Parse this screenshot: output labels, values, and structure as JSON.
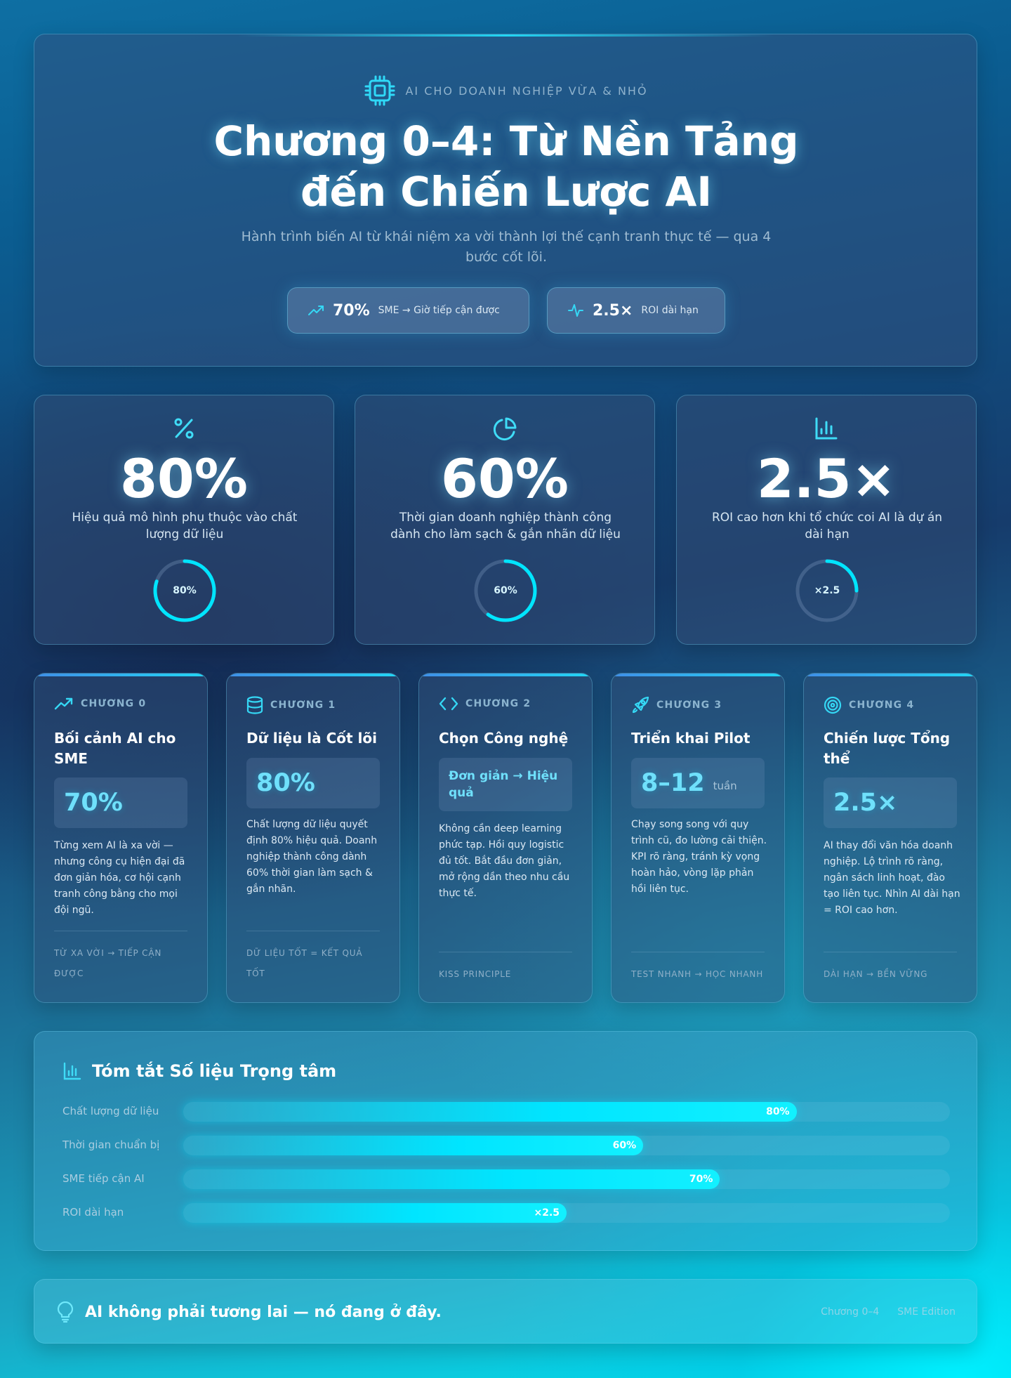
{
  "hero": {
    "eyebrow": "AI CHO DOANH NGHIỆP VỪA & NHỎ",
    "title_line1": "Chương 0–4: Từ Nền Tảng",
    "title_line2": "đến Chiến Lược AI",
    "subtitle": "Hành trình biến AI từ khái niệm xa vời thành lợi thế cạnh tranh thực tế — qua 4 bước cốt lõi.",
    "pills": [
      {
        "icon": "trending-up-icon",
        "value": "70%",
        "label": "SME → Giờ tiếp cận được"
      },
      {
        "icon": "pulse-icon",
        "value": "2.5×",
        "label": "ROI dài hạn"
      }
    ]
  },
  "stats": [
    {
      "icon": "percent-icon",
      "value": "80%",
      "desc": "Hiệu quả mô hình phụ thuộc vào chất lượng dữ liệu",
      "ring_label": "80%",
      "ring_fraction": 0.8
    },
    {
      "icon": "pie-chart-icon",
      "value": "60%",
      "desc": "Thời gian doanh nghiệp thành công dành cho làm sạch & gắn nhãn dữ liệu",
      "ring_label": "60%",
      "ring_fraction": 0.6
    },
    {
      "icon": "bar-chart-icon",
      "value": "2.5×",
      "desc": "ROI cao hơn khi tổ chức coi AI là dự án dài hạn",
      "ring_label": "×2.5",
      "ring_fraction": 0.25
    }
  ],
  "chapters": [
    {
      "icon": "trending-up-icon",
      "label": "CHƯƠNG 0",
      "title": "Bối cảnh AI cho SME",
      "value": "70%",
      "body": "Từng xem AI là xa vời — nhưng công cụ hiện đại đã đơn giản hóa, cơ hội cạnh tranh công bằng cho mọi đội ngũ.",
      "footer": "TỪ XA VỜI → TIẾP CẬN ĐƯỢC"
    },
    {
      "icon": "database-icon",
      "label": "CHƯƠNG 1",
      "title": "Dữ liệu là Cốt lõi",
      "value": "80%",
      "body": "Chất lượng dữ liệu quyết định 80% hiệu quả. Doanh nghiệp thành công dành 60% thời gian làm sạch & gắn nhãn.",
      "footer": "DỮ LIỆU TỐT = KẾT QUẢ TỐT"
    },
    {
      "icon": "code-icon",
      "label": "CHƯƠNG 2",
      "title": "Chọn Công nghệ",
      "value": "Đơn giản → Hiệu quả",
      "body": "Không cần deep learning phức tạp. Hồi quy logistic đủ tốt. Bắt đầu đơn giản, mở rộng dần theo nhu cầu thực tế.",
      "footer": "KISS PRINCIPLE"
    },
    {
      "icon": "rocket-icon",
      "label": "CHƯƠNG 3",
      "title": "Triển khai Pilot",
      "value": "8–12",
      "unit": "tuần",
      "body": "Chạy song song với quy trình cũ, đo lường cải thiện. KPI rõ ràng, tránh kỳ vọng hoàn hảo, vòng lặp phản hồi liên tục.",
      "footer": "TEST NHANH → HỌC NHANH"
    },
    {
      "icon": "target-icon",
      "label": "CHƯƠNG 4",
      "title": "Chiến lược Tổng thể",
      "value": "2.5×",
      "body": "AI thay đổi văn hóa doanh nghiệp. Lộ trình rõ ràng, ngân sách linh hoạt, đào tạo liên tục. Nhìn AI dài hạn = ROI cao hơn.",
      "footer": "DÀI HẠN → BỀN VỮNG"
    }
  ],
  "summary": {
    "icon": "bar-chart-icon",
    "title": "Tóm tắt Số liệu Trọng tâm",
    "rows": [
      {
        "name": "Chất lượng dữ liệu",
        "label": "80%",
        "fraction": 0.8
      },
      {
        "name": "Thời gian chuẩn bị",
        "label": "60%",
        "fraction": 0.6
      },
      {
        "name": "SME tiếp cận AI",
        "label": "70%",
        "fraction": 0.7
      },
      {
        "name": "ROI dài hạn",
        "label": "×2.5",
        "fraction": 0.5
      }
    ]
  },
  "footer": {
    "icon": "lightbulb-icon",
    "message": "AI không phải tương lai — nó đang ở đây.",
    "tags": [
      "Chương 0–4",
      "SME Edition"
    ]
  },
  "colors": {
    "accent": "#00e5ff",
    "accent_text": "#6fe0fb",
    "muted": "#8fb2cc"
  }
}
